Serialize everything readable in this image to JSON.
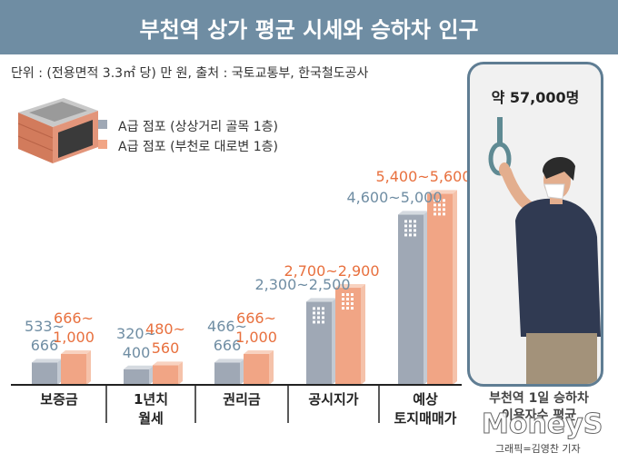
{
  "title": "부천역 상가 평균 시세와 승하차 인구",
  "subtitle": "단위 : (전용면적 3.3㎡ 당) 만 원, 출처 : 국토교통부, 한국철도공사",
  "legend": [
    {
      "label": "A급 점포 (상상거리 골목 1층)",
      "color": "#9fa8b5"
    },
    {
      "label": "A급 점포 (부천로 대로변 1층)",
      "color": "#f1a585"
    }
  ],
  "colors": {
    "title_bg": "#6f8da3",
    "gray_text": "#6f8da3",
    "orange_text": "#e8703e"
  },
  "chart_data": {
    "type": "bar",
    "categories": [
      [
        "보증금"
      ],
      [
        "1년치",
        "월세"
      ],
      [
        "권리금"
      ],
      [
        "공시지가"
      ],
      [
        "예상",
        "토지매매가"
      ]
    ],
    "series": [
      {
        "name": "A급 점포 (상상거리 골목 1층)",
        "labels": [
          [
            "533~",
            "666"
          ],
          [
            "320~",
            "400"
          ],
          [
            "466~",
            "666"
          ],
          [
            "2,300~2,500"
          ],
          [
            "4,600~5,000"
          ]
        ],
        "low": [
          533,
          320,
          466,
          2300,
          4600
        ],
        "high": [
          666,
          400,
          666,
          2500,
          5000
        ]
      },
      {
        "name": "A급 점포 (부천로 대로변 1층)",
        "labels": [
          [
            "666~",
            "1,000"
          ],
          [
            "480~",
            "560"
          ],
          [
            "666~",
            "1,000"
          ],
          [
            "2,700~2,900"
          ],
          [
            "5,400~5,600"
          ]
        ],
        "low": [
          666,
          480,
          666,
          2700,
          5400
        ],
        "high": [
          1000,
          560,
          1000,
          2900,
          5600
        ]
      }
    ]
  },
  "side_panel": {
    "ridership": "약 57,000명",
    "caption_line1": "부천역 1일 승하차",
    "caption_line2": "이용자수 평균"
  },
  "credit": "그래픽=김영찬 기자",
  "watermark": "MoneyS"
}
